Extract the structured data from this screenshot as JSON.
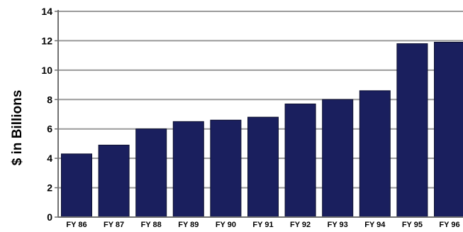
{
  "chart_data": {
    "type": "bar",
    "title": "",
    "xlabel": "",
    "ylabel": "$ in Billions",
    "categories": [
      "FY 86",
      "FY 87",
      "FY 88",
      "FY 89",
      "FY 90",
      "FY 91",
      "FY 92",
      "FY 93",
      "FY 94",
      "FY 95",
      "FY 96"
    ],
    "values": [
      4.3,
      4.9,
      6.0,
      6.5,
      6.6,
      6.8,
      7.7,
      8.0,
      8.6,
      11.8,
      11.9
    ],
    "ylim": [
      0,
      14
    ],
    "yticks": [
      "0",
      "2",
      "4",
      "6",
      "8",
      "10",
      "12",
      "14"
    ],
    "grid": true,
    "legend": "none",
    "colors": {
      "bar": "#1a1f5e",
      "bar_edge": "#0d1030",
      "grid": "#9a9a9a",
      "axis": "#707070",
      "text": "#000000"
    }
  }
}
